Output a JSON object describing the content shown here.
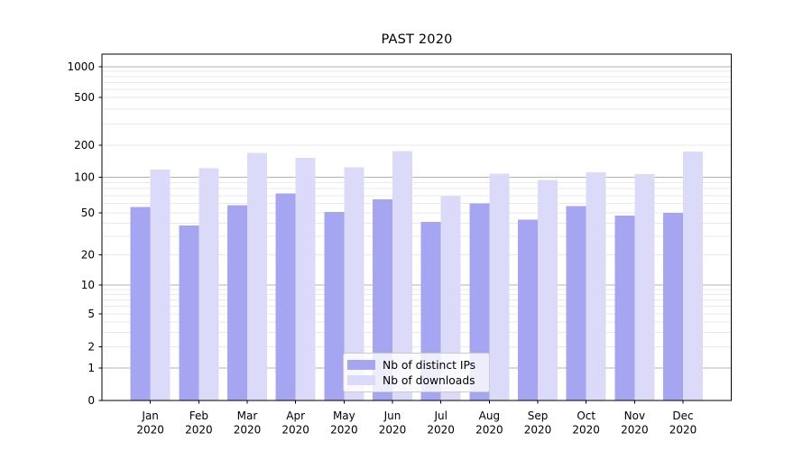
{
  "chart_data": {
    "type": "bar",
    "title": "PAST 2020",
    "months": [
      "Jan",
      "Feb",
      "Mar",
      "Apr",
      "May",
      "Jun",
      "Jul",
      "Aug",
      "Sep",
      "Oct",
      "Nov",
      "Dec"
    ],
    "year": "2020",
    "series": [
      {
        "name": "Nb of distinct IPs",
        "color": "#a5a5f1",
        "values": [
          56,
          38,
          58,
          73,
          51,
          65,
          41,
          60,
          43,
          57,
          47,
          50
        ]
      },
      {
        "name": "Nb of downloads",
        "color": "#dbdbf9",
        "values": [
          118,
          122,
          170,
          152,
          124,
          177,
          69,
          108,
          95,
          111,
          107,
          175
        ]
      }
    ],
    "yscale": "symlog",
    "yticks": [
      0,
      1,
      2,
      5,
      10,
      20,
      50,
      100,
      200,
      500,
      1000
    ],
    "ylim": [
      0,
      1300
    ],
    "grid": true,
    "legend_position": "lower center",
    "colors": {
      "grid_major": "#b3b3b3",
      "grid_minor": "#e9e9e9",
      "spine": "#000000",
      "text": "#000000",
      "background": "#ffffff"
    }
  }
}
